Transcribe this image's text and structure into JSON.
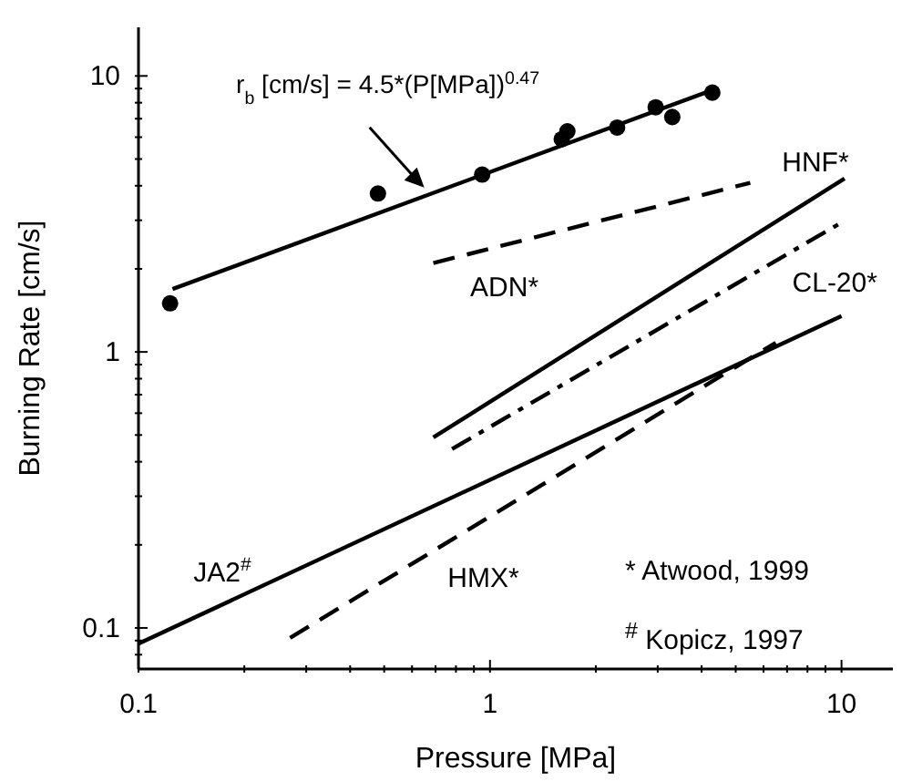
{
  "chart_data": {
    "type": "line",
    "xlabel": "Pressure [MPa]",
    "ylabel": "Burning Rate [cm/s]",
    "log": "xy",
    "grid": false,
    "legend": false,
    "xlim": [
      0.1,
      14
    ],
    "ylim": [
      0.071,
      15
    ],
    "xticks": [
      {
        "value": 0.1,
        "label": "0.1"
      },
      {
        "value": 0.2,
        "label": null
      },
      {
        "value": 0.3,
        "label": null
      },
      {
        "value": 0.4,
        "label": null
      },
      {
        "value": 0.5,
        "label": null
      },
      {
        "value": 0.6,
        "label": null
      },
      {
        "value": 0.7,
        "label": null
      },
      {
        "value": 0.8,
        "label": null
      },
      {
        "value": 0.9,
        "label": null
      },
      1,
      {
        "value": 2,
        "label": null
      },
      {
        "value": 3,
        "label": null
      },
      {
        "value": 4,
        "label": null
      },
      {
        "value": 5,
        "label": null
      },
      {
        "value": 6,
        "label": null
      },
      {
        "value": 7,
        "label": null
      },
      {
        "value": 8,
        "label": null
      },
      {
        "value": 9,
        "label": null
      },
      10
    ],
    "yticks": [
      {
        "value": 0.08,
        "label": null
      },
      {
        "value": 0.09,
        "label": null
      },
      {
        "value": 0.1,
        "label": "0.1"
      },
      {
        "value": 0.2,
        "label": null
      },
      {
        "value": 0.3,
        "label": null
      },
      {
        "value": 0.4,
        "label": null
      },
      {
        "value": 0.5,
        "label": null
      },
      {
        "value": 0.6,
        "label": null
      },
      {
        "value": 0.7,
        "label": null
      },
      {
        "value": 0.8,
        "label": null
      },
      {
        "value": 0.9,
        "label": null
      },
      1,
      {
        "value": 2,
        "label": null
      },
      {
        "value": 3,
        "label": null
      },
      {
        "value": 4,
        "label": null
      },
      {
        "value": 5,
        "label": null
      },
      {
        "value": 6,
        "label": null
      },
      {
        "value": 7,
        "label": null
      },
      {
        "value": 8,
        "label": null
      },
      {
        "value": 9,
        "label": null
      },
      10
    ],
    "series": [
      {
        "type": "scatter",
        "color": "#000000",
        "marker": "circle",
        "x": [
          0.123,
          0.48,
          0.95,
          1.6,
          1.66,
          2.3,
          2.96,
          3.3,
          4.29
        ],
        "values": [
          1.5,
          3.75,
          4.39,
          5.9,
          6.3,
          6.5,
          7.7,
          7.1,
          8.7
        ]
      },
      {
        "color": "#000000",
        "line_style": "solid",
        "x": [
          0.125,
          4.1
        ],
        "values": [
          1.69,
          8.7
        ]
      },
      {
        "name": "ADN*",
        "color": "#000000",
        "line_style": "dashed",
        "x": [
          0.69,
          5.5
        ],
        "values": [
          2.1,
          4.1
        ]
      },
      {
        "name": "HNF*",
        "color": "#000000",
        "line_style": "solid",
        "x": [
          0.69,
          10.2
        ],
        "values": [
          0.49,
          4.25
        ]
      },
      {
        "name": "CL-20*",
        "color": "#000000",
        "line_style": "dashdot",
        "x": [
          0.78,
          9.8
        ],
        "values": [
          0.445,
          2.9
        ]
      },
      {
        "name": "JA2$^{#}$",
        "color": "#000000",
        "line_style": "solid",
        "x": [
          0.1,
          10
        ],
        "values": [
          0.0877,
          1.35
        ]
      },
      {
        "name": "HMX*",
        "color": "#000000",
        "line_style": "dashed",
        "x": [
          0.27,
          6.5
        ],
        "values": [
          0.092,
          1.08
        ]
      }
    ],
    "annotations": [
      {
        "text": "r$_{b}$ [cm/s] = 4.5*(P[MPa])$^{0.47}$",
        "x": 0.65,
        "y": 3.94
      },
      "* Atwood, 1999",
      "$^{#}$ Kopicz, 1997"
    ]
  }
}
